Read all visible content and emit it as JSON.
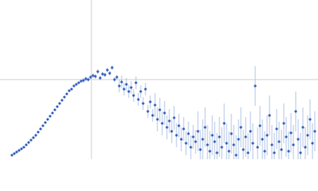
{
  "chart_data": {
    "type": "scatter",
    "x": [
      15,
      18,
      21,
      24,
      27,
      30,
      33,
      36,
      39,
      42,
      45,
      48,
      51,
      54,
      57,
      60,
      63,
      66,
      69,
      72,
      75,
      78,
      81,
      84,
      87,
      90,
      93,
      96,
      99,
      102,
      105,
      108,
      111,
      114,
      117,
      120,
      123,
      126,
      129,
      132,
      135,
      138,
      141,
      144,
      147,
      150,
      153,
      156,
      159,
      162,
      165,
      168,
      171,
      174,
      177,
      180,
      183,
      186,
      189,
      192,
      195,
      198,
      201,
      204,
      207,
      210,
      213,
      216,
      219,
      222,
      225,
      228,
      231,
      234,
      237,
      240,
      243,
      246,
      249,
      252,
      255,
      258,
      261,
      264,
      267,
      270,
      273,
      276,
      279,
      282,
      285,
      288,
      291,
      294,
      297,
      300,
      303,
      306,
      309,
      312,
      315,
      318,
      321,
      324,
      327,
      330,
      333,
      336,
      339,
      342,
      345,
      348,
      351,
      354,
      357,
      360,
      363,
      366,
      369,
      372,
      375,
      378,
      381,
      384,
      387,
      390,
      393,
      396
    ],
    "values": [
      5,
      7,
      9,
      11,
      13,
      15,
      18,
      21,
      24,
      27,
      30,
      34,
      38,
      42,
      46,
      50,
      54,
      58,
      62,
      66,
      70,
      74,
      78,
      82,
      86,
      88,
      92,
      94,
      96,
      98,
      99,
      101,
      100,
      103,
      105,
      104,
      110,
      102,
      107,
      106,
      112,
      108,
      115,
      100,
      103,
      92,
      97,
      88,
      94,
      85,
      90,
      80,
      96,
      75,
      85,
      70,
      88,
      60,
      72,
      55,
      68,
      50,
      62,
      45,
      58,
      40,
      48,
      35,
      52,
      30,
      42,
      25,
      38,
      20,
      32,
      15,
      28,
      22,
      35,
      12,
      25,
      40,
      18,
      10,
      30,
      22,
      8,
      28,
      15,
      45,
      20,
      10,
      32,
      18,
      5,
      25,
      40,
      12,
      28,
      8,
      35,
      20,
      92,
      15,
      42,
      25,
      10,
      30,
      55,
      18,
      8,
      38,
      22,
      12,
      45,
      28,
      10,
      33,
      18,
      60,
      25,
      8,
      40,
      15,
      30,
      50,
      20,
      35
    ],
    "errors": [
      1,
      1,
      1,
      1,
      1,
      1,
      1,
      1,
      1,
      1,
      1,
      1,
      1,
      1,
      1,
      1,
      1,
      1,
      1,
      1,
      1,
      1,
      1,
      1,
      1,
      1,
      1,
      1,
      1,
      1,
      3,
      3,
      3,
      3,
      3,
      3,
      3,
      3,
      3,
      3,
      3,
      3,
      3,
      3,
      3,
      8,
      8,
      8,
      8,
      8,
      8,
      8,
      8,
      8,
      8,
      8,
      8,
      8,
      8,
      8,
      15,
      15,
      15,
      15,
      15,
      15,
      15,
      15,
      15,
      15,
      15,
      15,
      15,
      15,
      15,
      15,
      15,
      15,
      25,
      25,
      25,
      25,
      25,
      25,
      25,
      25,
      25,
      25,
      25,
      25,
      25,
      25,
      25,
      25,
      25,
      25,
      25,
      25,
      25,
      25,
      25,
      25,
      25,
      25,
      25,
      25,
      25,
      25,
      25,
      25,
      25,
      25,
      25,
      25,
      25,
      25,
      25,
      25,
      25,
      25,
      25,
      25,
      25,
      25,
      25,
      25,
      25,
      25
    ],
    "color": "#3a66c0",
    "error_color": "#b3c5e6",
    "xlim": [
      0,
      400
    ],
    "ylim": [
      0,
      200
    ],
    "xticks": [
      115
    ],
    "yticks": [
      100
    ],
    "grid": true
  }
}
